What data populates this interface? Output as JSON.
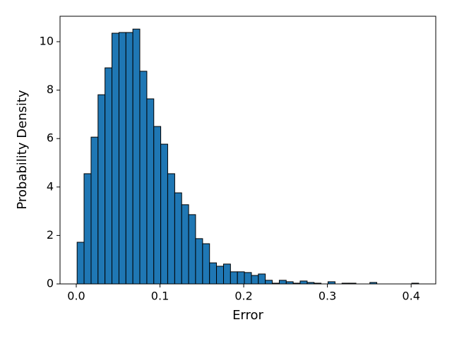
{
  "chart_data": {
    "type": "histogram",
    "xlabel": "Error",
    "ylabel": "Probability Density",
    "bins": [
      0.001,
      0.0093,
      0.0177,
      0.026,
      0.0343,
      0.0426,
      0.051,
      0.0593,
      0.0676,
      0.0759,
      0.0843,
      0.0926,
      0.1009,
      0.1092,
      0.1176,
      0.1259,
      0.1342,
      0.1425,
      0.1509,
      0.1592,
      0.1675,
      0.1759,
      0.1842,
      0.1925,
      0.2008,
      0.2092,
      0.2175,
      0.2258,
      0.2341,
      0.2425,
      0.2508,
      0.2591,
      0.2674,
      0.2758,
      0.2841,
      0.2924,
      0.3007,
      0.3091,
      0.3174,
      0.3257,
      0.3341,
      0.3424,
      0.3507,
      0.359,
      0.3674,
      0.3757,
      0.384,
      0.3923,
      0.4007,
      0.409
    ],
    "values": [
      1.72,
      4.55,
      6.06,
      7.81,
      8.92,
      10.35,
      10.38,
      10.38,
      10.52,
      8.78,
      7.64,
      6.5,
      5.77,
      4.55,
      3.76,
      3.27,
      2.86,
      1.87,
      1.66,
      0.87,
      0.73,
      0.82,
      0.5,
      0.5,
      0.47,
      0.35,
      0.41,
      0.15,
      0.03,
      0.15,
      0.09,
      0.03,
      0.12,
      0.06,
      0.03,
      0,
      0.09,
      0,
      0.03,
      0.03,
      0,
      0,
      0.06,
      0,
      0,
      0,
      0,
      0,
      0.03
    ],
    "color": "#1f77b4",
    "edgecolor": "#000000",
    "xlim": [
      -0.0194,
      0.4294
    ],
    "xticks": [
      {
        "value": 0,
        "label": "0.0"
      },
      0.1,
      0.2,
      0.3,
      0.4
    ],
    "ylim": [
      0,
      11.05
    ],
    "yticks": [
      0,
      2,
      4,
      6,
      8,
      10
    ]
  }
}
